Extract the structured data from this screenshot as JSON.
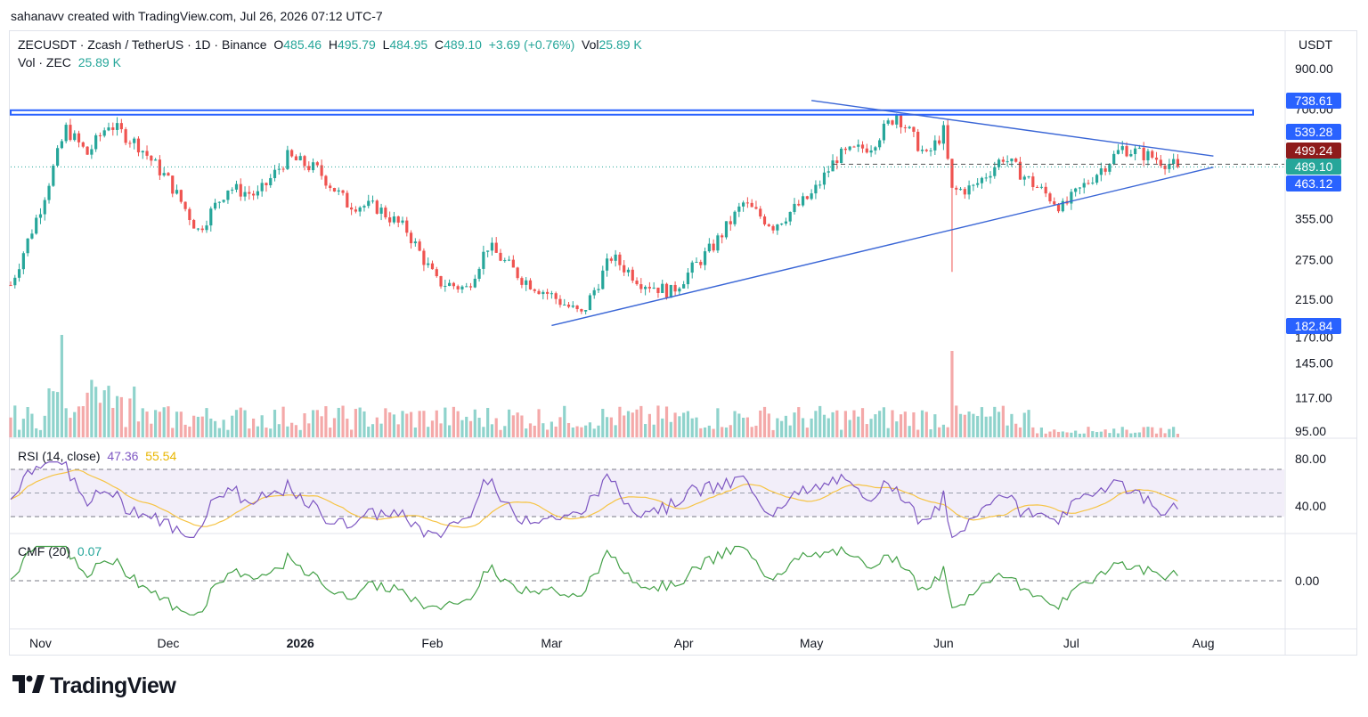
{
  "header": {
    "byline": "sahanavv created with TradingView.com, Jul 26, 2026 07:12 UTC-7"
  },
  "legend": {
    "symbol": "ZECUSDT · Zcash / TetherUS · 1D · Binance",
    "o_label": "O",
    "o": "485.46",
    "h_label": "H",
    "h": "495.79",
    "l_label": "L",
    "l": "484.95",
    "c_label": "C",
    "c": "489.10",
    "change": "+3.69 (+0.76%)",
    "vol_label": "Vol",
    "vol": "25.89 K",
    "vol_line_label": "Vol · ZEC",
    "vol_line_value": "25.89 K"
  },
  "rsi_legend": {
    "label": "RSI (14, close)",
    "value": "47.36",
    "ma": "55.54"
  },
  "cmf_legend": {
    "label": "CMF (20)",
    "value": "0.07"
  },
  "price_axis": {
    "unit": "USDT",
    "ticks": [
      "900.00",
      "700.00",
      "355.00",
      "275.00",
      "215.00",
      "170.00",
      "145.00",
      "117.00",
      "95.00"
    ],
    "tags": [
      {
        "text": "738.61",
        "color": "#2962ff"
      },
      {
        "text": "539.28",
        "color": "#2962ff"
      },
      {
        "text": "499.24",
        "color": "#8e1b1b"
      },
      {
        "text": "489.10",
        "color": "#26a69a"
      },
      {
        "text": "463.12",
        "color": "#2962ff"
      },
      {
        "text": "182.84",
        "color": "#2962ff"
      }
    ]
  },
  "rsi_axis": {
    "ticks": [
      "80.00",
      "40.00"
    ]
  },
  "cmf_axis": {
    "ticks": [
      "0.00"
    ]
  },
  "time_axis": {
    "labels": [
      "Nov",
      "Dec",
      "2026",
      "Feb",
      "Mar",
      "Apr",
      "May",
      "Jun",
      "Jul",
      "Aug"
    ]
  },
  "chart_data": {
    "type": "candlestick",
    "symbol": "ZECUSDT",
    "interval": "1D",
    "y_scale": "log",
    "ylim": [
      95,
      900
    ],
    "x_range": [
      "2025-10-25",
      "2026-08-20"
    ],
    "price_path": [
      {
        "date": "2025-10-25",
        "close": 235
      },
      {
        "date": "2025-11-01",
        "close": 380
      },
      {
        "date": "2025-11-07",
        "close": 620
      },
      {
        "date": "2025-11-12",
        "close": 530
      },
      {
        "date": "2025-11-17",
        "close": 640
      },
      {
        "date": "2025-11-24",
        "close": 560
      },
      {
        "date": "2025-12-01",
        "close": 450
      },
      {
        "date": "2025-12-08",
        "close": 330
      },
      {
        "date": "2025-12-15",
        "close": 430
      },
      {
        "date": "2025-12-22",
        "close": 410
      },
      {
        "date": "2025-12-29",
        "close": 520
      },
      {
        "date": "2026-01-05",
        "close": 480
      },
      {
        "date": "2026-01-12",
        "close": 390
      },
      {
        "date": "2026-01-19",
        "close": 380
      },
      {
        "date": "2026-01-26",
        "close": 330
      },
      {
        "date": "2026-02-02",
        "close": 240
      },
      {
        "date": "2026-02-09",
        "close": 230
      },
      {
        "date": "2026-02-14",
        "close": 300
      },
      {
        "date": "2026-02-22",
        "close": 245
      },
      {
        "date": "2026-03-01",
        "close": 220
      },
      {
        "date": "2026-03-08",
        "close": 195
      },
      {
        "date": "2026-03-15",
        "close": 280
      },
      {
        "date": "2026-03-22",
        "close": 240
      },
      {
        "date": "2026-03-29",
        "close": 225
      },
      {
        "date": "2026-04-08",
        "close": 300
      },
      {
        "date": "2026-04-15",
        "close": 390
      },
      {
        "date": "2026-04-22",
        "close": 340
      },
      {
        "date": "2026-05-01",
        "close": 410
      },
      {
        "date": "2026-05-07",
        "close": 520
      },
      {
        "date": "2026-05-15",
        "close": 560
      },
      {
        "date": "2026-05-21",
        "close": 680
      },
      {
        "date": "2026-05-28",
        "close": 520
      },
      {
        "date": "2026-06-01",
        "close": 610
      },
      {
        "date": "2026-06-03",
        "close": 420
      },
      {
        "date": "2026-06-08",
        "close": 430
      },
      {
        "date": "2026-06-15",
        "close": 520
      },
      {
        "date": "2026-06-22",
        "close": 440
      },
      {
        "date": "2026-06-29",
        "close": 380
      },
      {
        "date": "2026-07-06",
        "close": 460
      },
      {
        "date": "2026-07-13",
        "close": 550
      },
      {
        "date": "2026-07-20",
        "close": 520
      },
      {
        "date": "2026-07-26",
        "close": 489.1
      }
    ],
    "horizontal_levels": [
      738.61,
      700.0
    ],
    "trendlines": [
      {
        "name": "descending",
        "from": {
          "date": "2026-05-01",
          "price": 738.61
        },
        "to": {
          "date": "2026-07-26",
          "price": 539.28
        }
      },
      {
        "name": "ascending",
        "from": {
          "date": "2026-03-01",
          "price": 182.84
        },
        "to": {
          "date": "2026-07-26",
          "price": 463.12
        }
      }
    ],
    "volume_last": "25.89 K",
    "rsi": {
      "length": 14,
      "value": 47.36,
      "ma": 55.54,
      "bands": [
        70,
        30
      ]
    },
    "cmf": {
      "length": 20,
      "value": 0.07
    }
  }
}
